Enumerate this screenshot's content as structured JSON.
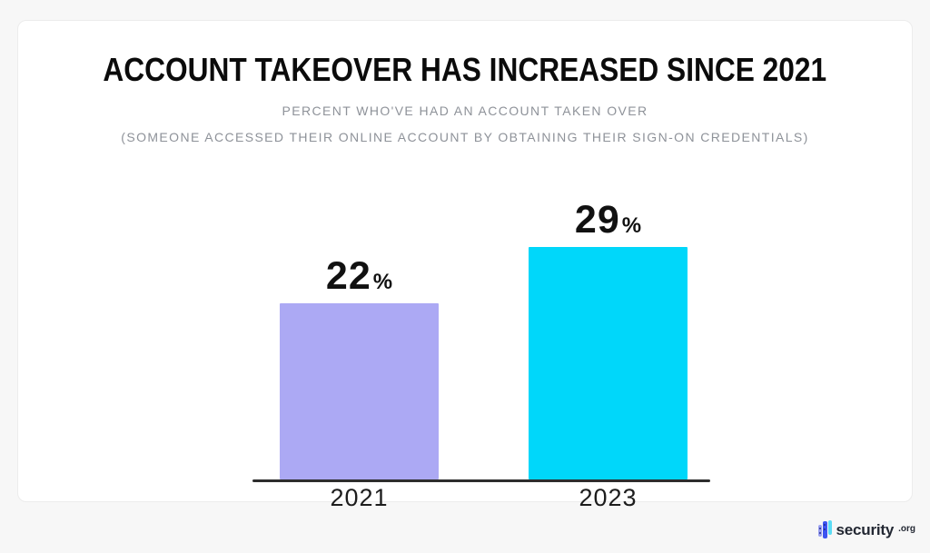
{
  "chart_data": {
    "type": "bar",
    "title": "ACCOUNT TAKEOVER HAS INCREASED SINCE 2021",
    "subtitle_line1": "PERCENT WHO'VE HAD AN ACCOUNT TAKEN OVER",
    "subtitle_line2": "(SOMEONE ACCESSED THEIR ONLINE ACCOUNT BY OBTAINING THEIR SIGN-ON CREDENTIALS)",
    "categories": [
      "2021",
      "2023"
    ],
    "values": [
      22,
      29
    ],
    "unit": "%",
    "bar_colors": [
      "#ACA9F4",
      "#00D7FA"
    ],
    "xlabel": "",
    "ylabel": "",
    "ylim": [
      0,
      29
    ],
    "grid": false,
    "legend": false,
    "axis_line_color": "#2d2d2d"
  },
  "branding": {
    "logo_text": "security",
    "logo_suffix": ".org"
  }
}
